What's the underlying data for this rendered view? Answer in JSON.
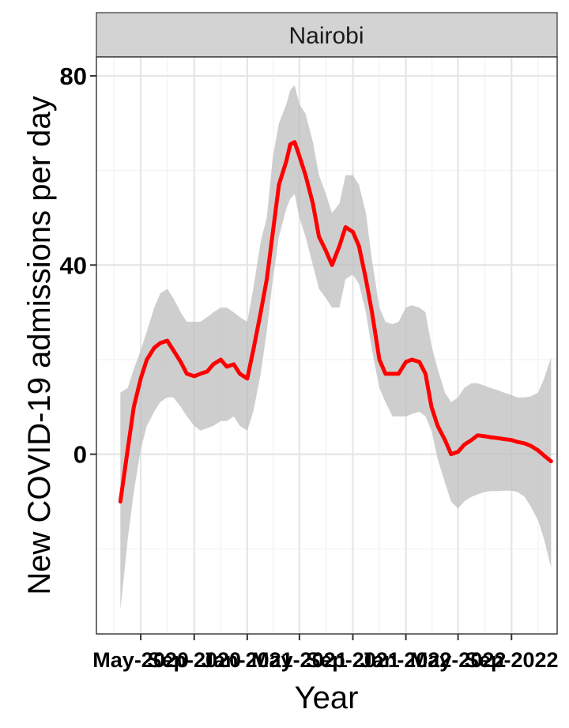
{
  "chart_data": {
    "type": "line",
    "facet": "Nairobi",
    "xlabel": "Year",
    "ylabel": "New COVID-19 admissions per day",
    "x_ticks": [
      "May-2020",
      "Sep-2020",
      "Jan-2021",
      "May-2021",
      "Sep-2021",
      "Jan-2022",
      "May-2022",
      "Sep-2022"
    ],
    "x_tick_dates": [
      "2020-05",
      "2020-09",
      "2021-01",
      "2021-05",
      "2021-09",
      "2022-01",
      "2022-05",
      "2022-09"
    ],
    "y_ticks": [
      0,
      40,
      80
    ],
    "ylim": [
      -38,
      84
    ],
    "xlim": [
      "2020-01-20",
      "2022-12-15"
    ],
    "grid": true,
    "colors": {
      "line": "#ff0000",
      "ribbon": "#bdbdbd",
      "strip": "#d3d3d3"
    },
    "series": [
      {
        "x": [
          "2020-03-15",
          "2020-04-01",
          "2020-04-15",
          "2020-05-01",
          "2020-05-15",
          "2020-06-01",
          "2020-06-15",
          "2020-07-01",
          "2020-07-15",
          "2020-08-01",
          "2020-08-15",
          "2020-09-01",
          "2020-09-15",
          "2020-10-01",
          "2020-10-15",
          "2020-11-01",
          "2020-11-15",
          "2020-12-01",
          "2020-12-15",
          "2021-01-01",
          "2021-01-15",
          "2021-02-01",
          "2021-02-15",
          "2021-03-01",
          "2021-03-15",
          "2021-04-01",
          "2021-04-10",
          "2021-04-20",
          "2021-05-01",
          "2021-05-15",
          "2021-06-01",
          "2021-06-15",
          "2021-07-01",
          "2021-07-15",
          "2021-08-01",
          "2021-08-15",
          "2021-09-01",
          "2021-09-15",
          "2021-10-01",
          "2021-10-15",
          "2021-11-01",
          "2021-11-15",
          "2021-12-01",
          "2021-12-15",
          "2022-01-01",
          "2022-01-15",
          "2022-02-01",
          "2022-02-15",
          "2022-03-01",
          "2022-03-15",
          "2022-04-01",
          "2022-04-15",
          "2022-05-01",
          "2022-05-15",
          "2022-06-01",
          "2022-06-15",
          "2022-07-01",
          "2022-07-15",
          "2022-08-01",
          "2022-08-15",
          "2022-09-01",
          "2022-09-15",
          "2022-10-01",
          "2022-10-15",
          "2022-11-01",
          "2022-11-15",
          "2022-12-01"
        ],
        "y": [
          -10,
          1,
          10,
          16,
          20,
          22.5,
          23.5,
          24,
          22,
          19.5,
          17,
          16.5,
          17,
          17.5,
          19,
          20,
          18.5,
          19,
          17,
          16,
          22,
          30,
          37,
          47,
          57,
          62,
          65.5,
          66,
          63,
          59,
          53,
          46,
          43,
          40,
          44,
          48,
          47,
          44,
          37,
          30,
          20,
          17,
          17,
          17,
          19.5,
          20,
          19.5,
          17,
          10,
          6,
          3,
          0,
          0.5,
          2,
          3,
          4,
          3.8,
          3.6,
          3.4,
          3.2,
          3,
          2.6,
          2.3,
          1.8,
          0.8,
          -0.3,
          -1.5
        ],
        "lower": [
          -33,
          -18,
          -8,
          1,
          6,
          9,
          11,
          12,
          12,
          10,
          8,
          6,
          5,
          5.5,
          6,
          7,
          7,
          8,
          6,
          5,
          9,
          17,
          26,
          37,
          46,
          52,
          54,
          55,
          50,
          46,
          40,
          35,
          33,
          31,
          31,
          37,
          38,
          36,
          30,
          22,
          14,
          11,
          8,
          8,
          8,
          8.5,
          9,
          8,
          5,
          -1,
          -6,
          -10,
          -11.5,
          -10,
          -9,
          -8.5,
          -8,
          -7.8,
          -7.8,
          -7.7,
          -7.7,
          -8,
          -9,
          -11,
          -14,
          -18,
          -24
        ],
        "upper": [
          13,
          14,
          18,
          22,
          26,
          31,
          34,
          35,
          33,
          30,
          28,
          28,
          28,
          29,
          30,
          31,
          31,
          30,
          29,
          28,
          35,
          45,
          50,
          63,
          70,
          74,
          77,
          78,
          74,
          72,
          66,
          59,
          55,
          51,
          53,
          59,
          59,
          57,
          51,
          41,
          31,
          28,
          27.5,
          28,
          31,
          31.5,
          31,
          30,
          23,
          18,
          13,
          11,
          12,
          14,
          15,
          15,
          14.5,
          14,
          13.5,
          13,
          12.5,
          12,
          12,
          12.2,
          13,
          16,
          20.5
        ]
      }
    ]
  }
}
